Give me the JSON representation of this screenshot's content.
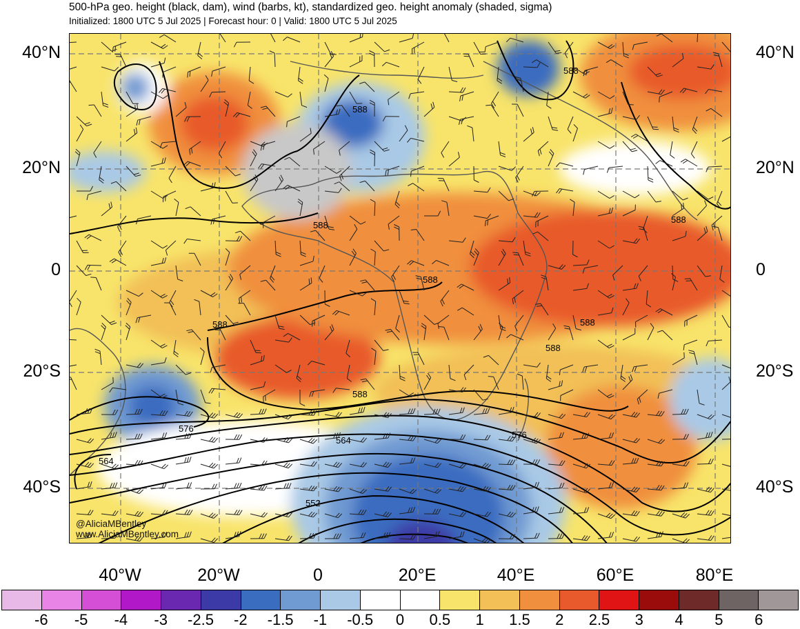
{
  "header": {
    "title": "500-hPa geo. height (black, dam), wind (barbs, kt), standardized geo. height anomaly (shaded, sigma)",
    "subtitle": "Initialized: 1800 UTC 5 Jul 2025 | Forecast hour: 0 | Valid: 1800 UTC 5 Jul 2025"
  },
  "map": {
    "lat_labels": [
      "40°N",
      "20°N",
      "0",
      "20°S",
      "40°S"
    ],
    "lon_labels": [
      "40°W",
      "20°W",
      "0",
      "20°E",
      "40°E",
      "60°E",
      "80°E"
    ],
    "contour_labels": [
      "588",
      "588",
      "588",
      "588",
      "588",
      "588",
      "588",
      "588",
      "588",
      "576",
      "576",
      "564",
      "564",
      "552"
    ],
    "credit": [
      "@AliciaMBentley",
      "www.AliciaMBentley.com"
    ]
  },
  "colorbar": {
    "ticks": [
      "-6",
      "-5",
      "-4",
      "-3",
      "-2.5",
      "-2",
      "-1.5",
      "-1",
      "-0.5",
      "0",
      "0.5",
      "1",
      "1.5",
      "2",
      "2.5",
      "3",
      "4",
      "5",
      "6"
    ],
    "colors": [
      "#e8b8e6",
      "#e884e6",
      "#d44ed6",
      "#b018c8",
      "#6a28b0",
      "#3c3aa6",
      "#3a6cc0",
      "#6f9ad2",
      "#a9c9e6",
      "#ffffff",
      "#ffffff",
      "#f8e46a",
      "#f2c057",
      "#f08f3e",
      "#e85a2c",
      "#e01414",
      "#9a0c0c",
      "#6e2a28",
      "#6e6464",
      "#a09898"
    ]
  }
}
